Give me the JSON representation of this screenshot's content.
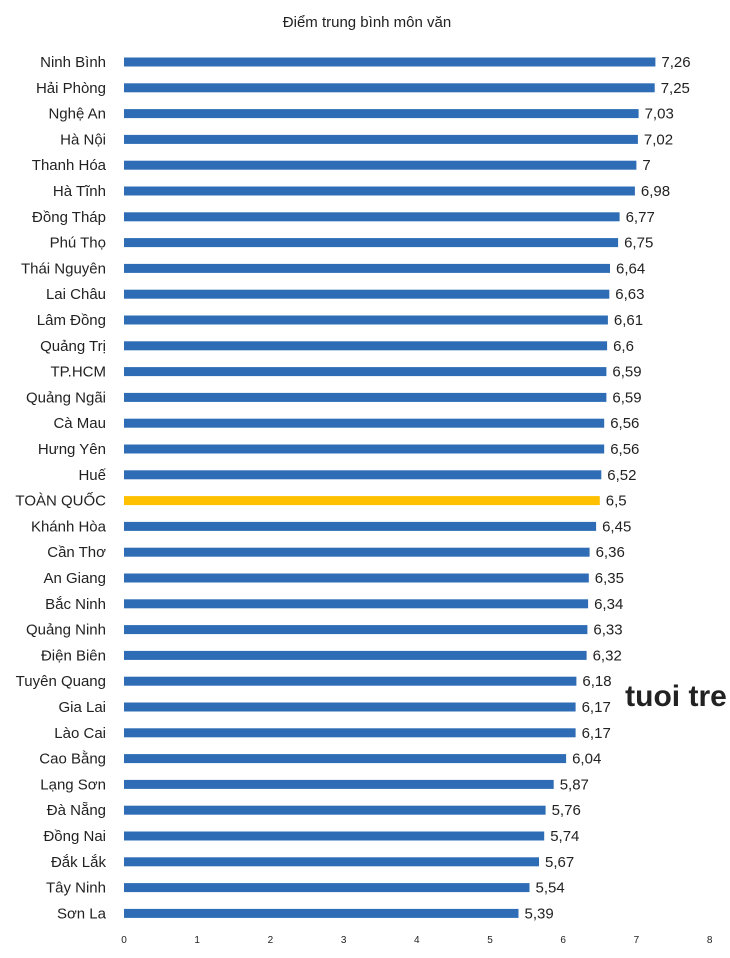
{
  "watermark": "tuoi tre",
  "chart_data": {
    "type": "bar",
    "orientation": "horizontal",
    "title": "Điểm trung bình môn văn",
    "xlabel": "",
    "ylabel": "",
    "xlim": [
      0,
      8
    ],
    "x_ticks": [
      "0",
      "1",
      "2",
      "3",
      "4",
      "5",
      "6",
      "7",
      "8"
    ],
    "grid": false,
    "legend": "none",
    "bar_color": "#2e6db5",
    "highlight_color": "#ffc000",
    "highlight_category": "TOÀN QUỐC",
    "categories": [
      "Ninh Bình",
      "Hải Phòng",
      "Nghệ An",
      "Hà Nội",
      "Thanh Hóa",
      "Hà Tĩnh",
      "Đồng Tháp",
      "Phú Thọ",
      "Thái Nguyên",
      "Lai Châu",
      "Lâm Đồng",
      "Quảng Trị",
      "TP.HCM",
      "Quảng Ngãi",
      "Cà Mau",
      "Hưng Yên",
      "Huế",
      "TOÀN QUỐC",
      "Khánh Hòa",
      "Cần Thơ",
      "An Giang",
      "Bắc Ninh",
      "Quảng Ninh",
      "Điện Biên",
      "Tuyên Quang",
      "Gia Lai",
      "Lào Cai",
      "Cao Bằng",
      "Lạng Sơn",
      "Đà Nẵng",
      "Đồng Nai",
      "Đắk Lắk",
      "Tây Ninh",
      "Sơn La"
    ],
    "values": [
      7.26,
      7.25,
      7.03,
      7.02,
      7,
      6.98,
      6.77,
      6.75,
      6.64,
      6.63,
      6.61,
      6.6,
      6.59,
      6.59,
      6.56,
      6.56,
      6.52,
      6.5,
      6.45,
      6.36,
      6.35,
      6.34,
      6.33,
      6.32,
      6.18,
      6.17,
      6.17,
      6.04,
      5.87,
      5.76,
      5.74,
      5.67,
      5.54,
      5.39
    ],
    "value_labels": [
      "7,26",
      "7,25",
      "7,03",
      "7,02",
      "7",
      "6,98",
      "6,77",
      "6,75",
      "6,64",
      "6,63",
      "6,61",
      "6,6",
      "6,59",
      "6,59",
      "6,56",
      "6,56",
      "6,52",
      "6,5",
      "6,45",
      "6,36",
      "6,35",
      "6,34",
      "6,33",
      "6,32",
      "6,18",
      "6,17",
      "6,17",
      "6,04",
      "5,87",
      "5,76",
      "5,74",
      "5,67",
      "5,54",
      "5,39"
    ]
  }
}
